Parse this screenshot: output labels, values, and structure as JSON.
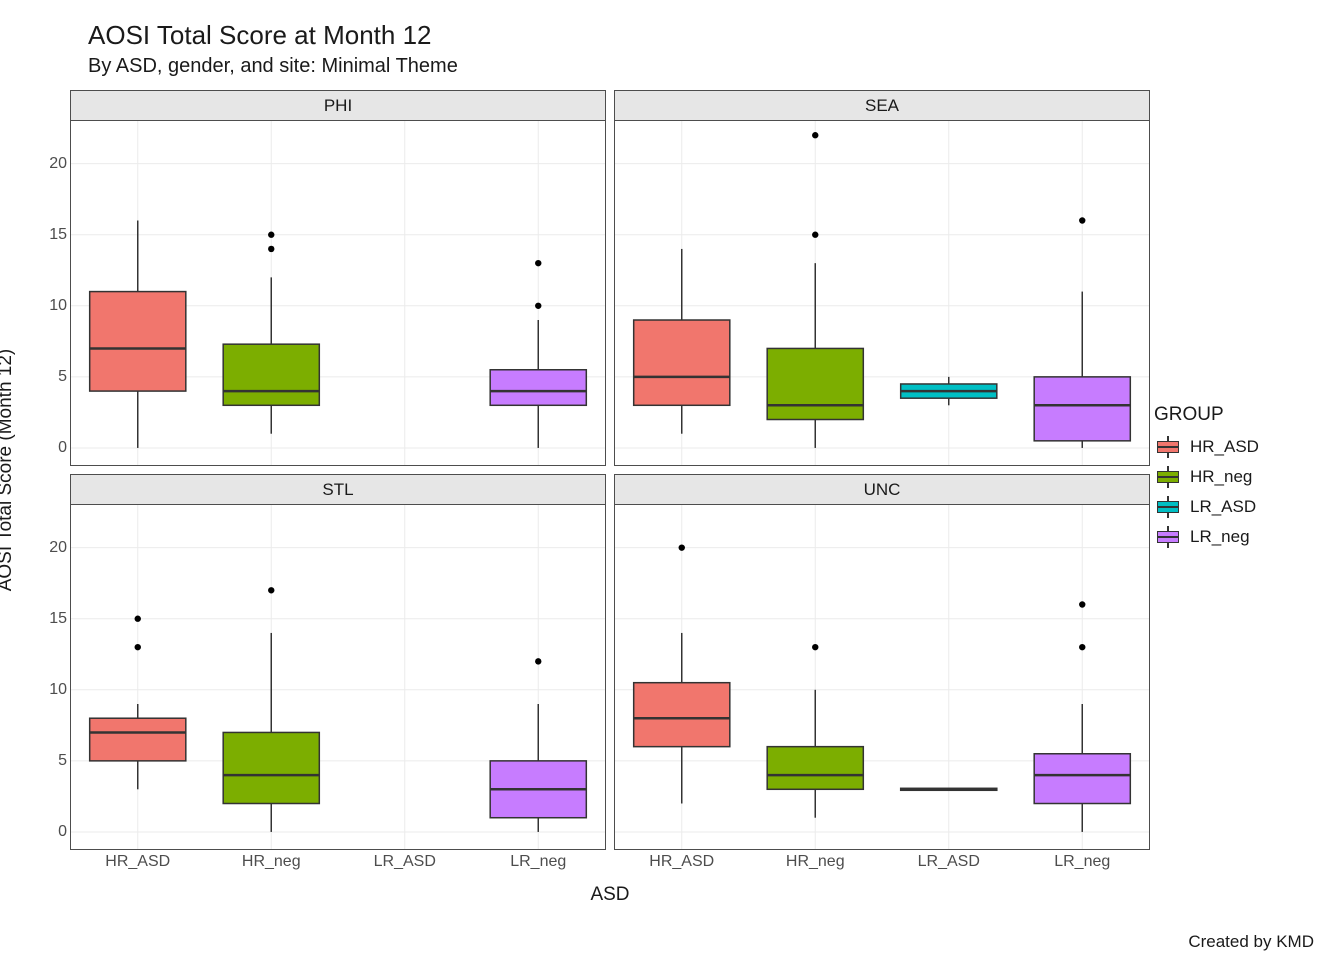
{
  "title": "AOSI Total Score at Month 12",
  "subtitle": "By ASD, gender, and site: Minimal Theme",
  "caption": "Created by KMD",
  "axis": {
    "x_title": "ASD",
    "y_title": "AOSI Total Score (Month 12)",
    "x_categories": [
      "HR_ASD",
      "HR_neg",
      "LR_ASD",
      "LR_neg"
    ],
    "y_ticks": [
      0,
      5,
      10,
      15,
      20
    ],
    "y_lim": [
      -1.2,
      23
    ]
  },
  "colors": {
    "HR_ASD": "#f1766d",
    "HR_neg": "#7cae00",
    "LR_ASD": "#00bfc4",
    "LR_neg": "#c77cff",
    "grid": "#ebebeb",
    "panel_border": "#4d4d4d",
    "strip_bg": "#e6e6e6",
    "text": "#1a1a1a",
    "tick_text": "#4d4d4d",
    "box_stroke": "#333333",
    "background": "#ffffff"
  },
  "style": {
    "title_fontsize": 26,
    "subtitle_fontsize": 20,
    "axis_title_fontsize": 19,
    "tick_fontsize": 16,
    "strip_fontsize": 17,
    "legend_title_fontsize": 19,
    "legend_label_fontsize": 17,
    "box_rel_width": 0.72,
    "line_width": 1.5,
    "median_width": 2.5,
    "outlier_radius": 3.2
  },
  "legend": {
    "title": "GROUP",
    "items": [
      {
        "label": "HR_ASD",
        "color_key": "HR_ASD"
      },
      {
        "label": "HR_neg",
        "color_key": "HR_neg"
      },
      {
        "label": "LR_ASD",
        "color_key": "LR_ASD"
      },
      {
        "label": "LR_neg",
        "color_key": "LR_neg"
      }
    ]
  },
  "facets": [
    {
      "label": "PHI",
      "boxes": [
        {
          "group": "HR_ASD",
          "min": 0,
          "q1": 4,
          "median": 7,
          "q3": 11,
          "max": 16,
          "outliers": []
        },
        {
          "group": "HR_neg",
          "min": 1,
          "q1": 3,
          "median": 4,
          "q3": 7.3,
          "max": 12,
          "outliers": [
            14,
            15
          ]
        },
        {
          "group": "LR_ASD",
          "min": null
        },
        {
          "group": "LR_neg",
          "min": 0,
          "q1": 3,
          "median": 4,
          "q3": 5.5,
          "max": 9,
          "outliers": [
            10,
            13
          ]
        }
      ]
    },
    {
      "label": "SEA",
      "boxes": [
        {
          "group": "HR_ASD",
          "min": 1,
          "q1": 3,
          "median": 5,
          "q3": 9,
          "max": 14,
          "outliers": []
        },
        {
          "group": "HR_neg",
          "min": 0,
          "q1": 2,
          "median": 3,
          "q3": 7,
          "max": 13,
          "outliers": [
            15,
            22
          ]
        },
        {
          "group": "LR_ASD",
          "min": 3,
          "q1": 3.5,
          "median": 4,
          "q3": 4.5,
          "max": 5,
          "outliers": []
        },
        {
          "group": "LR_neg",
          "min": 0,
          "q1": 0.5,
          "median": 3,
          "q3": 5,
          "max": 11,
          "outliers": [
            16
          ]
        }
      ]
    },
    {
      "label": "STL",
      "boxes": [
        {
          "group": "HR_ASD",
          "min": 3,
          "q1": 5,
          "median": 7,
          "q3": 8,
          "max": 9,
          "outliers": [
            13,
            15
          ]
        },
        {
          "group": "HR_neg",
          "min": 0,
          "q1": 2,
          "median": 4,
          "q3": 7,
          "max": 14,
          "outliers": [
            17
          ]
        },
        {
          "group": "LR_ASD",
          "min": null
        },
        {
          "group": "LR_neg",
          "min": 0,
          "q1": 1,
          "median": 3,
          "q3": 5,
          "max": 9,
          "outliers": [
            12
          ]
        }
      ]
    },
    {
      "label": "UNC",
      "boxes": [
        {
          "group": "HR_ASD",
          "min": 2,
          "q1": 6,
          "median": 8,
          "q3": 10.5,
          "max": 14,
          "outliers": [
            20
          ]
        },
        {
          "group": "HR_neg",
          "min": 1,
          "q1": 3,
          "median": 4,
          "q3": 6,
          "max": 10,
          "outliers": [
            13
          ]
        },
        {
          "group": "LR_ASD",
          "min": 3,
          "q1": 3,
          "median": 3,
          "q3": 3,
          "max": 3,
          "outliers": []
        },
        {
          "group": "LR_neg",
          "min": 0,
          "q1": 2,
          "median": 4,
          "q3": 5.5,
          "max": 9,
          "outliers": [
            13,
            16
          ]
        }
      ]
    }
  ]
}
